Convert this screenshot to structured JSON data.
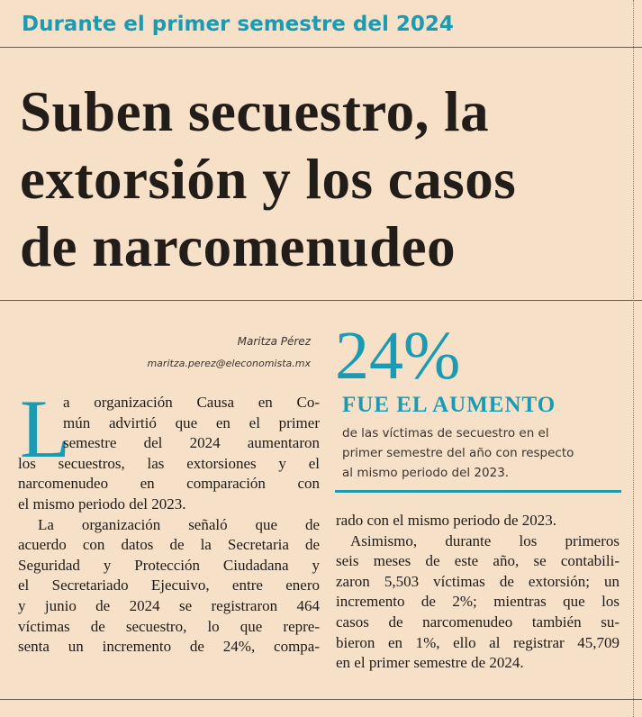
{
  "kicker": "Durante el primer semestre del 2024",
  "headline": [
    "Suben secuestro, la",
    "extorsión y los casos",
    "de narcomenudeo"
  ],
  "byline": {
    "author": "Maritza Pérez",
    "email": "maritza.perez@eleconomista.mx"
  },
  "callout": {
    "figure": "24%",
    "label": "FUE EL AUMENTO",
    "text": [
      "de las víctimas de secuestro en el",
      "primer semestre del año con respecto",
      "al mismo periodo del 2023."
    ]
  },
  "body": {
    "drop_cap": "L",
    "column_1": [
      "a organización Causa en Co-",
      "mún advirtió que en el primer",
      "semestre del 2024 aumentaron",
      "los secuestros, las extorsiones y el",
      "narcomenudeo en comparación con",
      "el mismo periodo del 2023.",
      "La organización señaló que de",
      "acuerdo con datos de la Secretaria de",
      "Seguridad y Protección Ciudadana y",
      "el Secretariado Ejecuivo, entre enero",
      "y junio de 2024 se registraron 464",
      "víctimas de secuestro, lo que repre-",
      "senta un incremento de 24%, compa-"
    ],
    "column_2": [
      "rado con el mismo periodo de 2023.",
      "Asimismo, durante los primeros",
      "seis meses de este año, se contabili-",
      "zaron 5,503 víctimas de extorsión; un",
      "incremento de 2%; mientras que los",
      "casos de narcomenudeo también su-",
      "bieron en 1%, ello al registrar 45,709",
      "en el primer semestre de 2024."
    ]
  }
}
